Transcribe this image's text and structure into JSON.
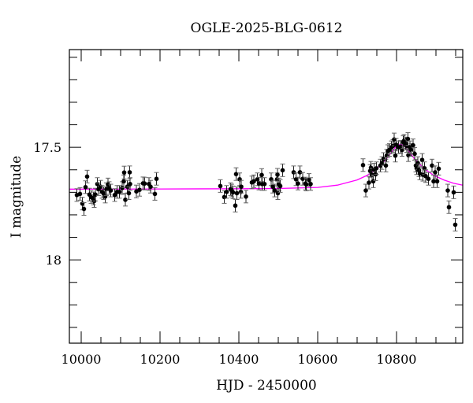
{
  "chart_data": {
    "type": "scatter",
    "title": "OGLE-2025-BLG-0612",
    "xlabel": "HJD - 2450000",
    "ylabel": "I magnitude",
    "xlim": [
      9970,
      10968
    ],
    "ylim": [
      17.066,
      18.37
    ],
    "y_inverted": true,
    "grid": false,
    "x_ticks": [
      10000,
      10200,
      10400,
      10600,
      10800
    ],
    "x_tick_labels": [
      "10000",
      "10200",
      "10400",
      "10600",
      "10800"
    ],
    "x_minor_step": 50,
    "y_ticks": [
      17.5,
      18
    ],
    "y_tick_labels": [
      "17.5",
      "18"
    ],
    "y_minor_step": 0.1,
    "colors": {
      "data": "#000000",
      "errorbar": "#555555",
      "model": "#ff00ff"
    },
    "series": [
      {
        "kind": "data_with_errorbars",
        "yerr": 0.028,
        "x": [
          9989,
          9997,
          10003,
          10007,
          10011,
          10015,
          10021,
          10025,
          10031,
          10033,
          10036,
          10041,
          10044,
          10049,
          10053,
          10057,
          10061,
          10064,
          10068,
          10071,
          10075,
          10085,
          10091,
          10097,
          10104,
          10108,
          10109,
          10112,
          10117,
          10121,
          10123,
          10124,
          10140,
          10148,
          10157,
          10161,
          10172,
          10176,
          10187,
          10191,
          10353,
          10363,
          10369,
          10379,
          10382,
          10385,
          10391,
          10393,
          10395,
          10402,
          10405,
          10406,
          10418,
          10433,
          10438,
          10447,
          10451,
          10458,
          10459,
          10465,
          10482,
          10486,
          10491,
          10497,
          10498,
          10499,
          10502,
          10505,
          10511,
          10539,
          10545,
          10550,
          10555,
          10562,
          10569,
          10571,
          10578,
          10582,
          10715,
          10722,
          10730,
          10733,
          10735,
          10738,
          10741,
          10743,
          10747,
          10749,
          10759,
          10763,
          10767,
          10773,
          10775,
          10778,
          10782,
          10787,
          10791,
          10794,
          10797,
          10799,
          10805,
          10810,
          10814,
          10817,
          10819,
          10823,
          10826,
          10829,
          10830,
          10834,
          10837,
          10842,
          10846,
          10849,
          10851,
          10854,
          10857,
          10859,
          10865,
          10867,
          10871,
          10874,
          10881,
          10890,
          10894,
          10898,
          10903,
          10907,
          10930,
          10933,
          10945,
          10949
        ],
        "y": [
          17.712,
          17.707,
          17.75,
          17.774,
          17.677,
          17.63,
          17.71,
          17.721,
          17.727,
          17.739,
          17.71,
          17.663,
          17.686,
          17.675,
          17.698,
          17.704,
          17.719,
          17.686,
          17.665,
          17.681,
          17.692,
          17.712,
          17.698,
          17.698,
          17.681,
          17.651,
          17.612,
          17.733,
          17.675,
          17.704,
          17.611,
          17.663,
          17.696,
          17.689,
          17.66,
          17.661,
          17.663,
          17.675,
          17.707,
          17.64,
          17.672,
          17.721,
          17.698,
          17.686,
          17.692,
          17.7,
          17.759,
          17.619,
          17.704,
          17.642,
          17.698,
          17.675,
          17.719,
          17.656,
          17.651,
          17.642,
          17.661,
          17.623,
          17.663,
          17.663,
          17.642,
          17.675,
          17.692,
          17.642,
          17.622,
          17.704,
          17.665,
          17.672,
          17.602,
          17.611,
          17.642,
          17.661,
          17.611,
          17.64,
          17.661,
          17.665,
          17.645,
          17.663,
          17.579,
          17.692,
          17.657,
          17.605,
          17.591,
          17.622,
          17.651,
          17.599,
          17.62,
          17.593,
          17.581,
          17.57,
          17.552,
          17.581,
          17.537,
          17.517,
          17.512,
          17.5,
          17.494,
          17.465,
          17.537,
          17.488,
          17.5,
          17.498,
          17.512,
          17.477,
          17.471,
          17.483,
          17.494,
          17.463,
          17.535,
          17.5,
          17.512,
          17.491,
          17.529,
          17.581,
          17.593,
          17.57,
          17.602,
          17.616,
          17.556,
          17.622,
          17.593,
          17.628,
          17.64,
          17.581,
          17.651,
          17.611,
          17.651,
          17.595,
          17.692,
          17.766,
          17.7,
          17.844
        ]
      },
      {
        "kind": "model_line",
        "x": [
          9970,
          10200,
          10400,
          10500,
          10600,
          10650,
          10700,
          10725,
          10750,
          10775,
          10790,
          10800,
          10810,
          10820,
          10830,
          10845,
          10870,
          10895,
          10920,
          10945,
          10968
        ],
        "y": [
          17.686,
          17.685,
          17.684,
          17.683,
          17.678,
          17.668,
          17.645,
          17.625,
          17.595,
          17.55,
          17.515,
          17.495,
          17.485,
          17.495,
          17.515,
          17.55,
          17.595,
          17.625,
          17.645,
          17.66,
          17.668
        ]
      }
    ]
  }
}
